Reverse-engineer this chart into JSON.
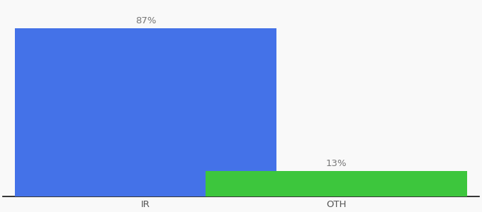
{
  "categories": [
    "IR",
    "OTH"
  ],
  "values": [
    87,
    13
  ],
  "bar_colors": [
    "#4472e8",
    "#3dc63d"
  ],
  "background_color": "#f9f9f9",
  "ylim": [
    0,
    100
  ],
  "bar_width": 0.55,
  "label_fontsize": 9.5,
  "tick_fontsize": 9.5,
  "label_color": "#777777",
  "tick_color": "#555555",
  "axis_line_color": "#111111",
  "x_positions": [
    0.3,
    0.7
  ],
  "xlim": [
    0.0,
    1.0
  ]
}
